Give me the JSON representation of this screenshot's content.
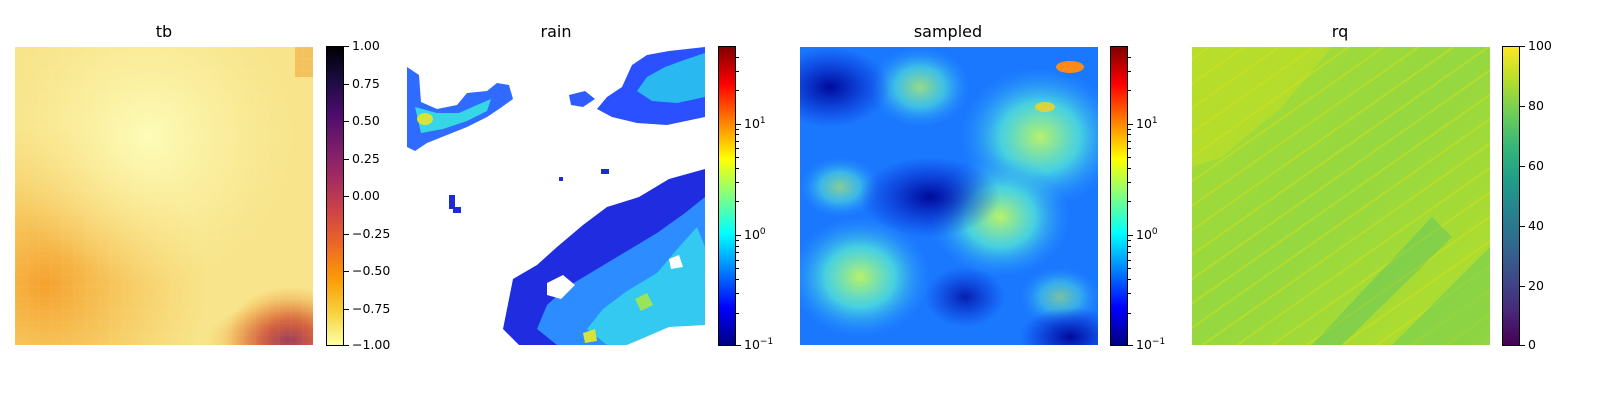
{
  "panels": [
    {
      "title": "tb",
      "colorbar": {
        "cmap": "inferno_r",
        "scale": "linear",
        "range": [
          -1.0,
          1.0
        ],
        "ticks": [
          {
            "value": 1.0,
            "label": "1.00"
          },
          {
            "value": 0.75,
            "label": "0.75"
          },
          {
            "value": 0.5,
            "label": "0.50"
          },
          {
            "value": 0.25,
            "label": "0.25"
          },
          {
            "value": 0.0,
            "label": "0.00"
          },
          {
            "value": -0.25,
            "label": "−0.25"
          },
          {
            "value": -0.5,
            "label": "−0.50"
          },
          {
            "value": -0.75,
            "label": "−0.75"
          },
          {
            "value": -1.0,
            "label": "−1.00"
          }
        ]
      }
    },
    {
      "title": "rain",
      "colorbar": {
        "cmap": "jet",
        "scale": "log",
        "range": [
          0.1,
          50
        ],
        "ticks": [
          {
            "value": 10,
            "base": "10",
            "exp": "1"
          },
          {
            "value": 1,
            "base": "10",
            "exp": "0"
          },
          {
            "value": 0.1,
            "base": "10",
            "exp": "−1"
          }
        ]
      }
    },
    {
      "title": "sampled",
      "colorbar": {
        "cmap": "jet",
        "scale": "log",
        "range": [
          0.1,
          50
        ],
        "ticks": [
          {
            "value": 10,
            "base": "10",
            "exp": "1"
          },
          {
            "value": 1,
            "base": "10",
            "exp": "0"
          },
          {
            "value": 0.1,
            "base": "10",
            "exp": "−1"
          }
        ]
      }
    },
    {
      "title": "rq",
      "colorbar": {
        "cmap": "viridis",
        "scale": "linear",
        "range": [
          0,
          100
        ],
        "ticks": [
          {
            "value": 100,
            "label": "100"
          },
          {
            "value": 80,
            "label": "80"
          },
          {
            "value": 60,
            "label": "60"
          },
          {
            "value": 40,
            "label": "40"
          },
          {
            "value": 20,
            "label": "20"
          },
          {
            "value": 0,
            "label": "0"
          }
        ]
      }
    }
  ]
}
